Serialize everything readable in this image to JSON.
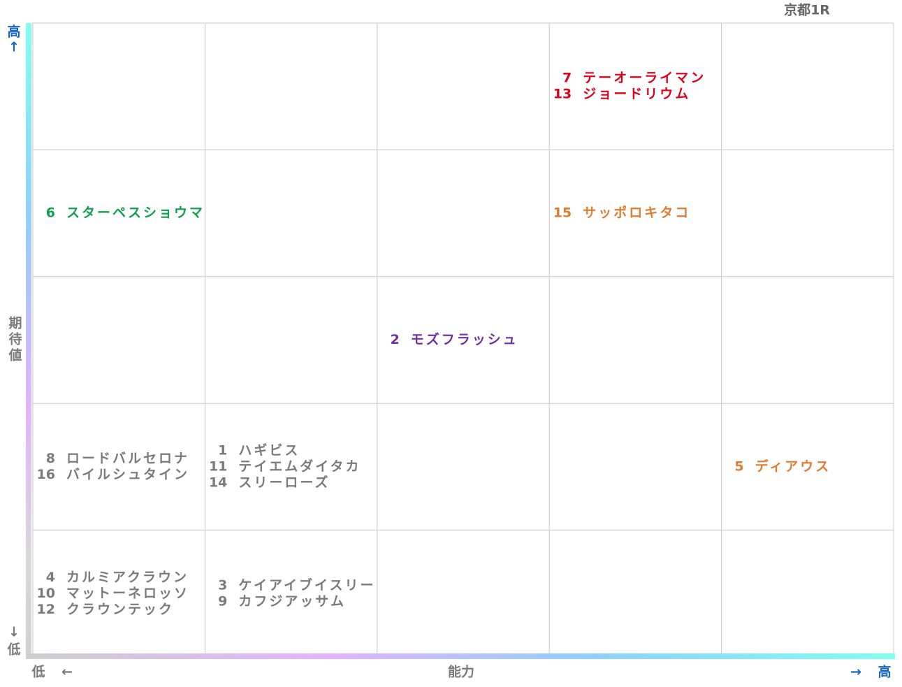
{
  "title": "京都1R",
  "y_axis": {
    "high": "高",
    "high_arrow": "↑",
    "label": "期待値",
    "low_arrow": "↓",
    "low": "低"
  },
  "x_axis": {
    "low": "低",
    "low_arrow": "←",
    "label": "能力",
    "high_arrow": "→",
    "high": "高"
  },
  "grid": {
    "rows": [
      [
        {
          "entries": []
        },
        {
          "entries": []
        },
        {
          "entries": []
        },
        {
          "color": "#e0001b",
          "entries": [
            {
              "number": 7,
              "name": "テーオーライマン"
            },
            {
              "number": 13,
              "name": "ジョードリウム"
            }
          ]
        },
        {
          "entries": []
        }
      ],
      [
        {
          "color": "#0f9f4f",
          "entries": [
            {
              "number": 6,
              "name": "スターペスショウマ"
            }
          ]
        },
        {
          "entries": []
        },
        {
          "entries": []
        },
        {
          "color": "#e07b30",
          "entries": [
            {
              "number": 15,
              "name": "サッポロキタコ"
            }
          ]
        },
        {
          "entries": []
        }
      ],
      [
        {
          "entries": []
        },
        {
          "entries": []
        },
        {
          "color": "#7030a0",
          "entries": [
            {
              "number": 2,
              "name": "モズフラッシュ"
            }
          ]
        },
        {
          "entries": []
        },
        {
          "entries": []
        }
      ],
      [
        {
          "color": "#7a7a7a",
          "entries": [
            {
              "number": 8,
              "name": "ロードバルセロナ"
            },
            {
              "number": 16,
              "name": "バイルシュタイン"
            }
          ]
        },
        {
          "color": "#7a7a7a",
          "entries": [
            {
              "number": 1,
              "name": "ハギビス"
            },
            {
              "number": 11,
              "name": "テイエムダイタカ"
            },
            {
              "number": 14,
              "name": "スリーローズ"
            }
          ]
        },
        {
          "entries": []
        },
        {
          "entries": []
        },
        {
          "color": "#e07b30",
          "entries": [
            {
              "number": 5,
              "name": "ディアウス"
            }
          ]
        }
      ],
      [
        {
          "color": "#7a7a7a",
          "entries": [
            {
              "number": 4,
              "name": "カルミアクラウン"
            },
            {
              "number": 10,
              "name": "マットーネロッソ"
            },
            {
              "number": 12,
              "name": "クラウンテック"
            }
          ]
        },
        {
          "color": "#7a7a7a",
          "entries": [
            {
              "number": 3,
              "name": "ケイアイブイスリー"
            },
            {
              "number": 9,
              "name": "カフジアッサム"
            }
          ]
        },
        {
          "entries": []
        },
        {
          "entries": []
        },
        {
          "entries": []
        }
      ]
    ]
  }
}
